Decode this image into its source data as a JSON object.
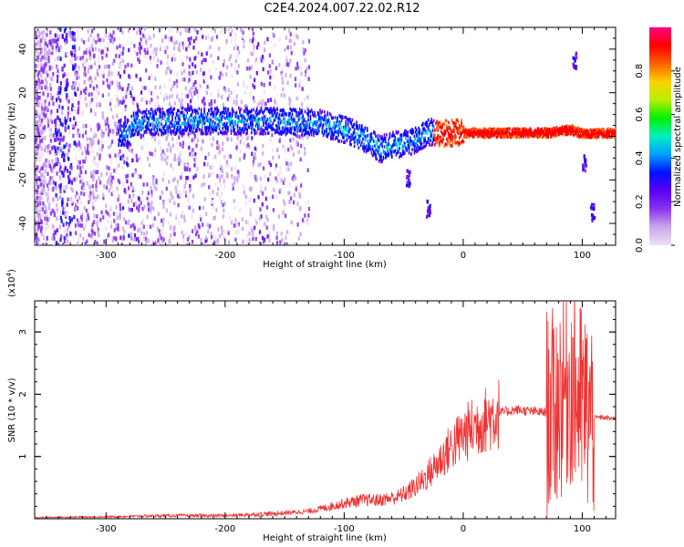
{
  "title": "C2E4.2024.007.22.02.R12",
  "chart_data": [
    {
      "type": "heatmap",
      "ylabel": "Frequency (Hz)",
      "xlabel": "Height of straight line (km)",
      "xlim": [
        -360,
        128
      ],
      "ylim": [
        -50,
        50
      ],
      "x_ticks": [
        -300,
        -200,
        -100,
        0,
        100
      ],
      "y_ticks": [
        -40,
        -20,
        0,
        20,
        40
      ],
      "colorbar": {
        "label": "Normalized spectral amplitude",
        "range": [
          0.0,
          1.0
        ],
        "ticks": [
          "0.0",
          "0.2",
          "0.4",
          "0.6",
          "0.8"
        ],
        "colors": [
          "#f1dff7",
          "#c9a8ec",
          "#8a33ee",
          "#5a00f5",
          "#0010ff",
          "#00a0ff",
          "#00f0c0",
          "#00f000",
          "#b8f000",
          "#ffd000",
          "#ff6000",
          "#ff0000",
          "#ff0080"
        ]
      },
      "signal_track": [
        {
          "x": -280,
          "f": 6
        },
        {
          "x": -240,
          "f": 7
        },
        {
          "x": -200,
          "f": 7
        },
        {
          "x": -160,
          "f": 7
        },
        {
          "x": -120,
          "f": 6
        },
        {
          "x": -100,
          "f": 3
        },
        {
          "x": -80,
          "f": -2
        },
        {
          "x": -70,
          "f": -6
        },
        {
          "x": -60,
          "f": -4
        },
        {
          "x": -45,
          "f": -3
        },
        {
          "x": -30,
          "f": 2
        },
        {
          "x": -20,
          "f": 1.5
        },
        {
          "x": 0,
          "f": 1.5
        },
        {
          "x": 70,
          "f": 1.5
        },
        {
          "x": 90,
          "f": 3
        },
        {
          "x": 100,
          "f": 1
        },
        {
          "x": 128,
          "f": 1.5
        }
      ],
      "secondary_features": [
        {
          "x": 93,
          "f": 35
        },
        {
          "x": 101,
          "f": -12
        },
        {
          "x": 108,
          "f": -35
        },
        {
          "x": -47,
          "f": -19
        },
        {
          "x": -30,
          "f": -33
        }
      ]
    },
    {
      "type": "line",
      "ylabel": "SNR (10 * v/v)",
      "yscale_label": "(x10",
      "yscale_exp": "4",
      "xlabel": "Height of straight line (km)",
      "xlim": [
        -360,
        128
      ],
      "ylim": [
        0,
        3.5
      ],
      "x_ticks": [
        -300,
        -200,
        -100,
        0,
        100
      ],
      "y_ticks": [
        1,
        2,
        3
      ],
      "series": [
        {
          "color": "#ee3333",
          "x": [
            -360,
            -300,
            -250,
            -200,
            -160,
            -130,
            -115,
            -100,
            -85,
            -70,
            -55,
            -45,
            -35,
            -25,
            -15,
            0,
            15,
            30,
            45,
            60,
            75,
            80,
            85,
            90,
            95,
            100,
            105,
            110,
            115,
            128
          ],
          "y": [
            0.02,
            0.03,
            0.05,
            0.05,
            0.08,
            0.12,
            0.18,
            0.25,
            0.3,
            0.3,
            0.35,
            0.45,
            0.6,
            0.8,
            1.05,
            1.35,
            1.55,
            1.7,
            1.75,
            1.72,
            1.7,
            1.9,
            2.1,
            2.2,
            2.0,
            1.8,
            1.7,
            1.62,
            1.63,
            1.6
          ]
        }
      ]
    }
  ]
}
